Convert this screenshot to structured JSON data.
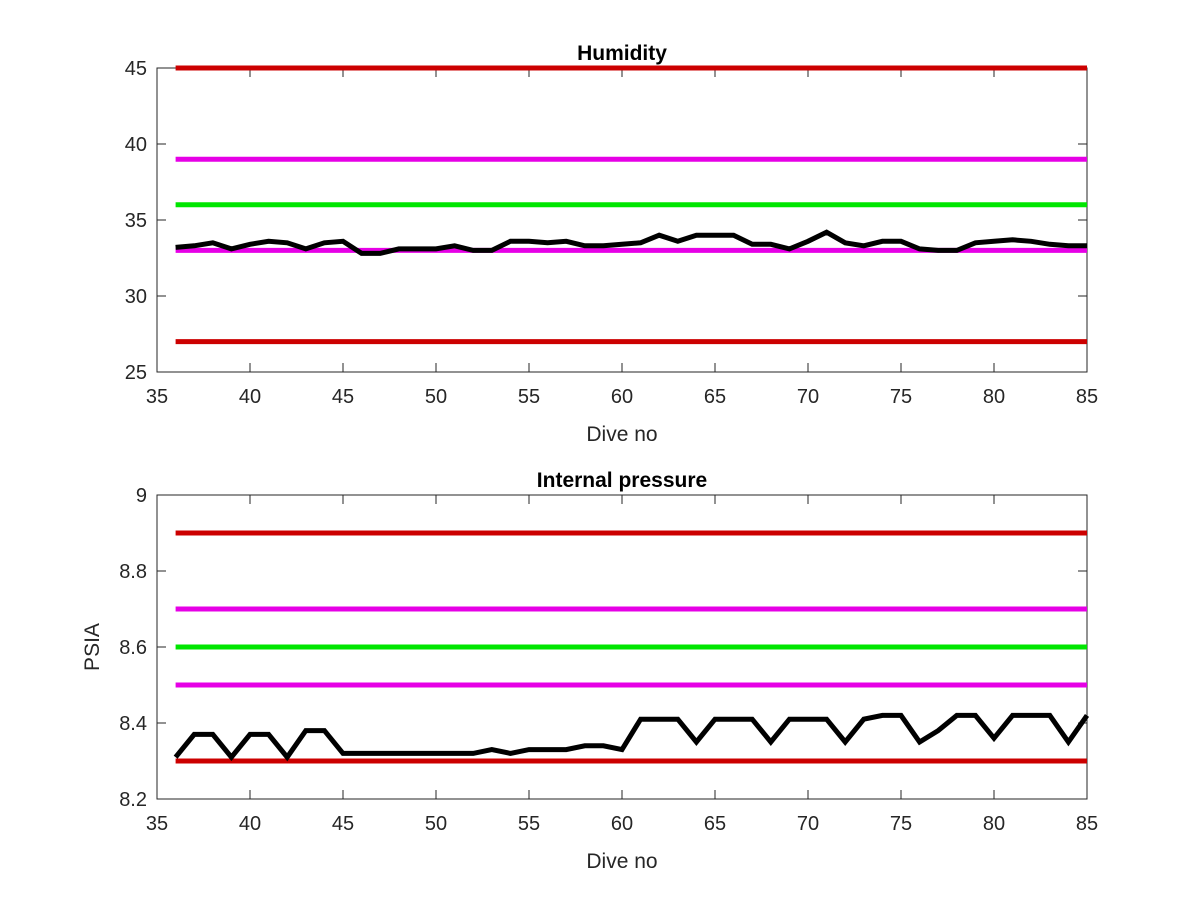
{
  "chart_data": [
    {
      "type": "line",
      "title": "Humidity",
      "xlabel": "Dive no",
      "ylabel": "",
      "xlim": [
        35,
        85
      ],
      "ylim": [
        25,
        45
      ],
      "xticks": [
        35,
        40,
        45,
        50,
        55,
        60,
        65,
        70,
        75,
        80,
        85
      ],
      "yticks": [
        25,
        30,
        35,
        40,
        45
      ],
      "grid": false,
      "colors": {
        "limit_outer": "#cc0000",
        "limit_warn": "#e600e6",
        "target": "#00e600",
        "data": "#000000"
      },
      "limit_lines": [
        {
          "y": 45,
          "color": "#cc0000"
        },
        {
          "y": 39,
          "color": "#e600e6"
        },
        {
          "y": 36,
          "color": "#00e600"
        },
        {
          "y": 33,
          "color": "#e600e6"
        },
        {
          "y": 27,
          "color": "#cc0000"
        }
      ],
      "series": [
        {
          "x": [
            36,
            37,
            38,
            39,
            40,
            41,
            42,
            43,
            44,
            45,
            46,
            47,
            48,
            49,
            50,
            51,
            52,
            53,
            54,
            55,
            56,
            57,
            58,
            59,
            60,
            61,
            62,
            63,
            64,
            65,
            66,
            67,
            68,
            69,
            70,
            71,
            72,
            73,
            74,
            75,
            76,
            77,
            78,
            79,
            80,
            81,
            82,
            83,
            84,
            85
          ],
          "y": [
            33.2,
            33.3,
            33.5,
            33.1,
            33.4,
            33.6,
            33.5,
            33.1,
            33.5,
            33.6,
            32.8,
            32.8,
            33.1,
            33.1,
            33.1,
            33.3,
            33.0,
            33.0,
            33.6,
            33.6,
            33.5,
            33.6,
            33.3,
            33.3,
            33.4,
            33.5,
            34.0,
            33.6,
            34.0,
            34.0,
            34.0,
            33.4,
            33.4,
            33.1,
            33.6,
            34.2,
            33.5,
            33.3,
            33.6,
            33.6,
            33.1,
            33.0,
            33.0,
            33.5,
            33.6,
            33.7,
            33.6,
            33.4,
            33.3,
            33.3
          ]
        }
      ]
    },
    {
      "type": "line",
      "title": "Internal pressure",
      "xlabel": "Dive no",
      "ylabel": "PSIA",
      "xlim": [
        35,
        85
      ],
      "ylim": [
        8.2,
        9
      ],
      "xticks": [
        35,
        40,
        45,
        50,
        55,
        60,
        65,
        70,
        75,
        80,
        85
      ],
      "yticks": [
        8.2,
        8.4,
        8.6,
        8.8,
        9
      ],
      "grid": false,
      "colors": {
        "limit_outer": "#cc0000",
        "limit_warn": "#e600e6",
        "target": "#00e600",
        "data": "#000000"
      },
      "limit_lines": [
        {
          "y": 8.9,
          "color": "#cc0000"
        },
        {
          "y": 8.7,
          "color": "#e600e6"
        },
        {
          "y": 8.6,
          "color": "#00e600"
        },
        {
          "y": 8.5,
          "color": "#e600e6"
        },
        {
          "y": 8.3,
          "color": "#cc0000"
        }
      ],
      "series": [
        {
          "x": [
            36,
            37,
            38,
            39,
            40,
            41,
            42,
            43,
            44,
            45,
            46,
            47,
            48,
            49,
            50,
            51,
            52,
            53,
            54,
            55,
            56,
            57,
            58,
            59,
            60,
            61,
            62,
            63,
            64,
            65,
            66,
            67,
            68,
            69,
            70,
            71,
            72,
            73,
            74,
            75,
            76,
            77,
            78,
            79,
            80,
            81,
            82,
            83,
            84,
            85
          ],
          "y": [
            8.31,
            8.37,
            8.37,
            8.31,
            8.37,
            8.37,
            8.31,
            8.38,
            8.38,
            8.32,
            8.32,
            8.32,
            8.32,
            8.32,
            8.32,
            8.32,
            8.32,
            8.33,
            8.32,
            8.33,
            8.33,
            8.33,
            8.34,
            8.34,
            8.33,
            8.41,
            8.41,
            8.41,
            8.35,
            8.41,
            8.41,
            8.41,
            8.35,
            8.41,
            8.41,
            8.41,
            8.35,
            8.41,
            8.42,
            8.42,
            8.35,
            8.38,
            8.42,
            8.42,
            8.36,
            8.42,
            8.42,
            8.42,
            8.35,
            8.42
          ]
        }
      ]
    }
  ]
}
